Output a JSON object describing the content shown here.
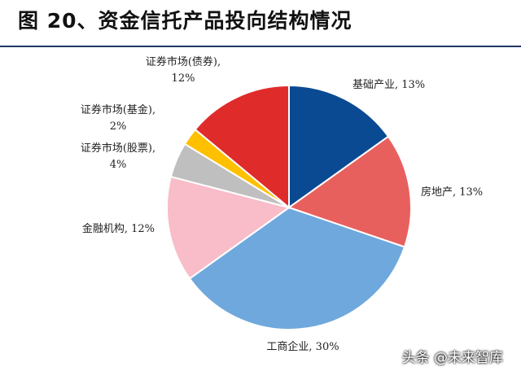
{
  "figure_title": "图 20、资金信托产品投向结构情况",
  "watermark": "头条 @未来智库",
  "chart_data": {
    "type": "pie",
    "title": "",
    "slices": [
      {
        "name": "基础产业",
        "value": 13,
        "label": "基础产业, 13%",
        "color": "#0a4a93"
      },
      {
        "name": "房地产",
        "value": 13,
        "label": "房地产, 13%",
        "color": "#e8605e"
      },
      {
        "name": "工商企业",
        "value": 30,
        "label": "工商企业, 30%",
        "color": "#6fa8dc"
      },
      {
        "name": "金融机构",
        "value": 12,
        "label": "金融机构, 12%",
        "color": "#f8bdc9"
      },
      {
        "name": "证券市场(股票)",
        "value": 4,
        "label_lines": [
          "证券市场(股票),",
          "4%"
        ],
        "color": "#bfbfbf"
      },
      {
        "name": "证券市场(基金)",
        "value": 2,
        "label_lines": [
          "证券市场(基金),",
          "2%"
        ],
        "color": "#ffc000"
      },
      {
        "name": "证券市场(债券)",
        "value": 12,
        "label_lines": [
          "证券市场(债券),",
          "12%"
        ],
        "color": "#e02b2b"
      }
    ]
  }
}
